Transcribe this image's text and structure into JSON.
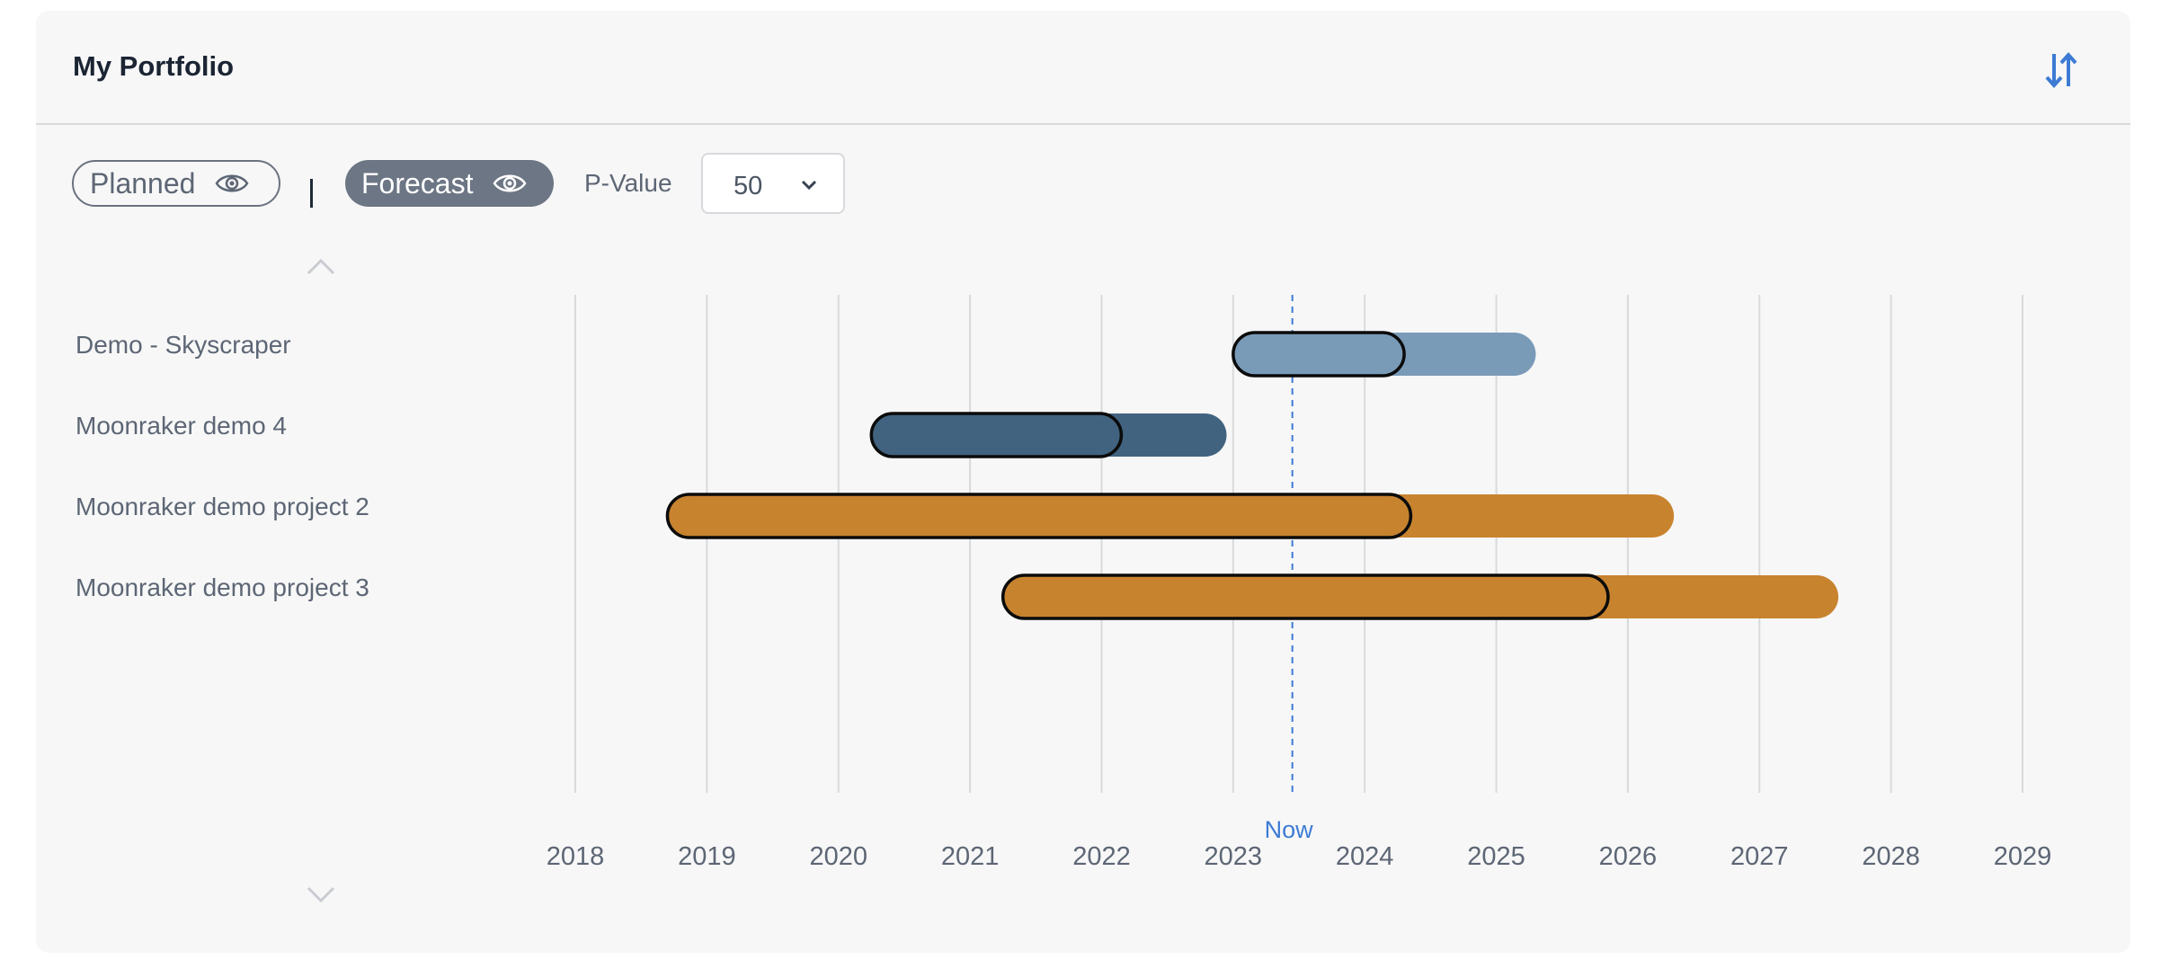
{
  "header": {
    "title": "My Portfolio",
    "sort_icon": "sort-arrows-icon"
  },
  "toolbar": {
    "planned_label": "Planned",
    "forecast_label": "Forecast",
    "separator": "|",
    "pvalue_label": "P-Value",
    "pvalue_selected": "50",
    "eye_icon": "eye-icon"
  },
  "colors": {
    "accent": "#3d7bd4",
    "gridline": "#d9dadc",
    "now_line": "#3d7bd4",
    "outline": "#0b0b0b"
  },
  "chart_data": {
    "type": "gantt",
    "x_axis": {
      "ticks": [
        "2018",
        "2019",
        "2020",
        "2021",
        "2022",
        "2023",
        "2024",
        "2025",
        "2026",
        "2027",
        "2028",
        "2029"
      ],
      "range": [
        2018,
        2029
      ]
    },
    "now": {
      "label": "Now",
      "value": 2023.45
    },
    "rows": [
      {
        "name": "Demo - Skyscraper",
        "color": "#7a9bb8",
        "planned": [
          2023.0,
          2024.3
        ],
        "forecast": [
          2023.0,
          2025.3
        ]
      },
      {
        "name": "Moonraker demo 4",
        "color": "#41637f",
        "planned": [
          2020.25,
          2022.15
        ],
        "forecast": [
          2020.25,
          2022.95
        ]
      },
      {
        "name": "Moonraker demo project 2",
        "color": "#c8832f",
        "planned": [
          2018.7,
          2024.35
        ],
        "forecast": [
          2018.7,
          2026.35
        ]
      },
      {
        "name": "Moonraker demo project 3",
        "color": "#c8832f",
        "planned": [
          2021.25,
          2025.85
        ],
        "forecast": [
          2021.25,
          2027.6
        ]
      }
    ]
  }
}
